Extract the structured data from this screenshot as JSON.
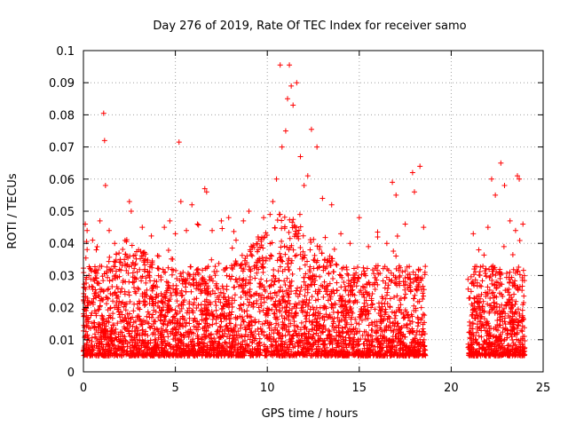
{
  "chart_data": {
    "type": "scatter",
    "title": "Day 276 of 2019, Rate Of TEC Index for receiver samo",
    "xlabel": "GPS time / hours",
    "ylabel": "ROTI / TECUs",
    "xlim": [
      0,
      25
    ],
    "ylim": [
      0,
      0.1
    ],
    "xticks": [
      "0",
      "5",
      "10",
      "15",
      "20",
      "25"
    ],
    "yticks": [
      "0",
      "0.01",
      "0.02",
      "0.03",
      "0.04",
      "0.05",
      "0.06",
      "0.07",
      "0.08",
      "0.09",
      "0.1"
    ],
    "grid": true,
    "marker": "+",
    "color": "#ff0000",
    "data_gap_hours": [
      18.6,
      20.9
    ],
    "series": [
      {
        "name": "ROTI",
        "points": [
          [
            0.1,
            0.046
          ],
          [
            0.2,
            0.044
          ],
          [
            0.3,
            0.03
          ],
          [
            0.5,
            0.041
          ],
          [
            0.7,
            0.038
          ],
          [
            0.9,
            0.047
          ],
          [
            1.1,
            0.0805
          ],
          [
            1.15,
            0.072
          ],
          [
            1.2,
            0.058
          ],
          [
            1.4,
            0.044
          ],
          [
            1.7,
            0.04
          ],
          [
            2.0,
            0.035
          ],
          [
            2.5,
            0.053
          ],
          [
            2.6,
            0.05
          ],
          [
            3.0,
            0.038
          ],
          [
            3.2,
            0.045
          ],
          [
            3.6,
            0.031
          ],
          [
            4.1,
            0.036
          ],
          [
            4.4,
            0.045
          ],
          [
            4.7,
            0.047
          ],
          [
            5.0,
            0.043
          ],
          [
            5.2,
            0.0715
          ],
          [
            5.3,
            0.053
          ],
          [
            5.6,
            0.044
          ],
          [
            5.9,
            0.052
          ],
          [
            6.2,
            0.046
          ],
          [
            6.6,
            0.057
          ],
          [
            6.7,
            0.056
          ],
          [
            7.0,
            0.044
          ],
          [
            7.5,
            0.047
          ],
          [
            7.9,
            0.048
          ],
          [
            8.3,
            0.041
          ],
          [
            8.7,
            0.047
          ],
          [
            9.0,
            0.05
          ],
          [
            9.5,
            0.042
          ],
          [
            9.8,
            0.048
          ],
          [
            10.3,
            0.053
          ],
          [
            10.5,
            0.06
          ],
          [
            10.7,
            0.0955
          ],
          [
            10.8,
            0.07
          ],
          [
            11.0,
            0.075
          ],
          [
            11.1,
            0.085
          ],
          [
            11.2,
            0.0955
          ],
          [
            11.3,
            0.089
          ],
          [
            11.4,
            0.083
          ],
          [
            11.6,
            0.09
          ],
          [
            11.8,
            0.067
          ],
          [
            12.0,
            0.058
          ],
          [
            12.2,
            0.061
          ],
          [
            12.4,
            0.0755
          ],
          [
            12.7,
            0.07
          ],
          [
            13.0,
            0.054
          ],
          [
            13.5,
            0.052
          ],
          [
            14.0,
            0.043
          ],
          [
            14.5,
            0.04
          ],
          [
            15.0,
            0.048
          ],
          [
            15.5,
            0.039
          ],
          [
            16.0,
            0.042
          ],
          [
            16.5,
            0.04
          ],
          [
            16.8,
            0.059
          ],
          [
            17.0,
            0.055
          ],
          [
            17.5,
            0.046
          ],
          [
            17.9,
            0.062
          ],
          [
            18.0,
            0.056
          ],
          [
            18.3,
            0.064
          ],
          [
            18.5,
            0.045
          ],
          [
            21.2,
            0.043
          ],
          [
            21.5,
            0.038
          ],
          [
            22.0,
            0.045
          ],
          [
            22.2,
            0.06
          ],
          [
            22.4,
            0.055
          ],
          [
            22.7,
            0.065
          ],
          [
            22.9,
            0.058
          ],
          [
            23.2,
            0.047
          ],
          [
            23.6,
            0.061
          ],
          [
            23.7,
            0.06
          ],
          [
            23.9,
            0.046
          ]
        ]
      }
    ]
  }
}
